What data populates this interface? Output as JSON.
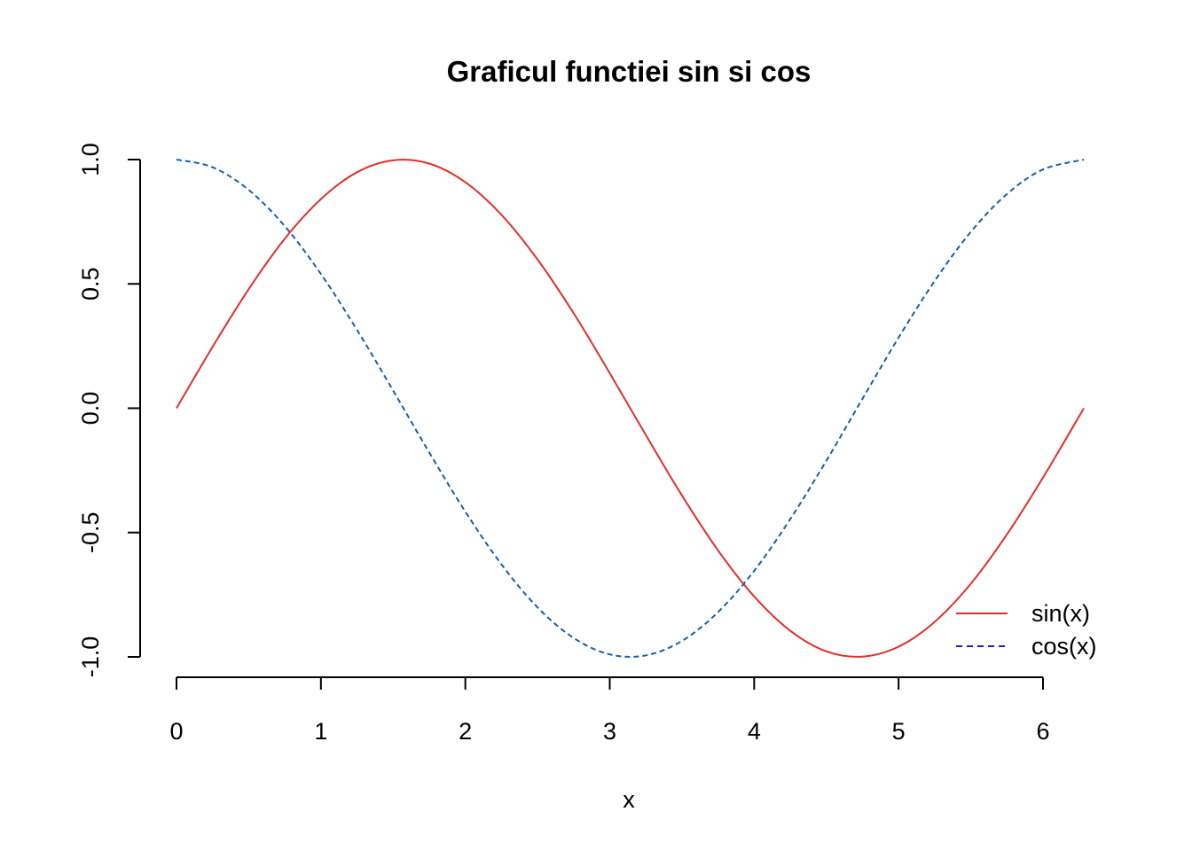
{
  "chart_data": {
    "type": "line",
    "title": "Graficul functiei sin si cos",
    "xlabel": "x",
    "ylabel": "",
    "xlim": [
      0,
      6.283
    ],
    "ylim": [
      -1,
      1
    ],
    "x_ticks": [
      0,
      1,
      2,
      3,
      4,
      5,
      6
    ],
    "x_tick_labels": [
      "0",
      "1",
      "2",
      "3",
      "4",
      "5",
      "6"
    ],
    "y_ticks": [
      -1,
      -0.5,
      0,
      0.5,
      1
    ],
    "y_tick_labels": [
      "-1.0",
      "-0.5",
      "0.0",
      "0.5",
      "1.0"
    ],
    "grid": false,
    "legend_position": "bottom-right",
    "x": [
      0,
      0.25,
      0.5,
      0.75,
      1,
      1.25,
      1.5,
      1.75,
      2,
      2.25,
      2.5,
      2.75,
      3,
      3.25,
      3.5,
      3.75,
      4,
      4.25,
      4.5,
      4.75,
      5,
      5.25,
      5.5,
      5.75,
      6,
      6.283
    ],
    "series": [
      {
        "name": "sin(x)",
        "color": "#e0302b",
        "line_style": "solid",
        "values": [
          0,
          0.247,
          0.479,
          0.682,
          0.841,
          0.949,
          0.997,
          0.984,
          0.909,
          0.778,
          0.598,
          0.382,
          0.141,
          -0.108,
          -0.351,
          -0.572,
          -0.757,
          -0.895,
          -0.978,
          -0.999,
          -0.959,
          -0.859,
          -0.706,
          -0.508,
          -0.279,
          0
        ]
      },
      {
        "name": "cos(x)",
        "color": "#1a5ea8",
        "line_style": "dashed",
        "values": [
          1,
          0.969,
          0.878,
          0.732,
          0.54,
          0.315,
          0.071,
          -0.178,
          -0.416,
          -0.628,
          -0.801,
          -0.924,
          -0.99,
          -0.994,
          -0.936,
          -0.82,
          -0.654,
          -0.446,
          -0.211,
          0.038,
          0.284,
          0.512,
          0.709,
          0.861,
          0.96,
          1
        ]
      }
    ]
  }
}
